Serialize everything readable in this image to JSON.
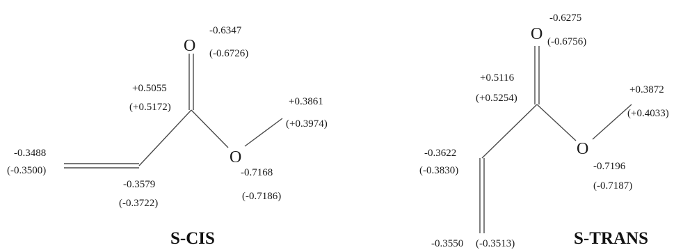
{
  "cis": {
    "caption": "S-CIS",
    "atoms": {
      "carbonyl_o": "O",
      "ether_o": "O"
    },
    "charges": {
      "carbonyl_o": [
        "-0.6347",
        "(-0.6726)"
      ],
      "carbonyl_c": [
        "+0.5055",
        "(+0.5172)"
      ],
      "methyl_h": [
        "+0.3861",
        "(+0.3974)"
      ],
      "terminal_c": [
        "-0.3488",
        "(-0.3500)"
      ],
      "alpha_c": [
        "-0.3579",
        "(-0.3722)"
      ],
      "ether_o": [
        "-0.7168",
        "(-0.7186)"
      ]
    }
  },
  "trans": {
    "caption": "S-TRANS",
    "atoms": {
      "carbonyl_o": "O",
      "ether_o": "O"
    },
    "charges": {
      "carbonyl_o": [
        "-0.6275",
        "(-0.6756)"
      ],
      "carbonyl_c": [
        "+0.5116",
        "(+0.5254)"
      ],
      "methyl_h": [
        "+0.3872",
        "(+0.4033)"
      ],
      "alpha_c": [
        "-0.3622",
        "(-0.3830)"
      ],
      "ether_o": [
        "-0.7196",
        "(-0.7187)"
      ],
      "terminal_c": [
        "-0.3550",
        "(-0.3513)"
      ]
    }
  }
}
